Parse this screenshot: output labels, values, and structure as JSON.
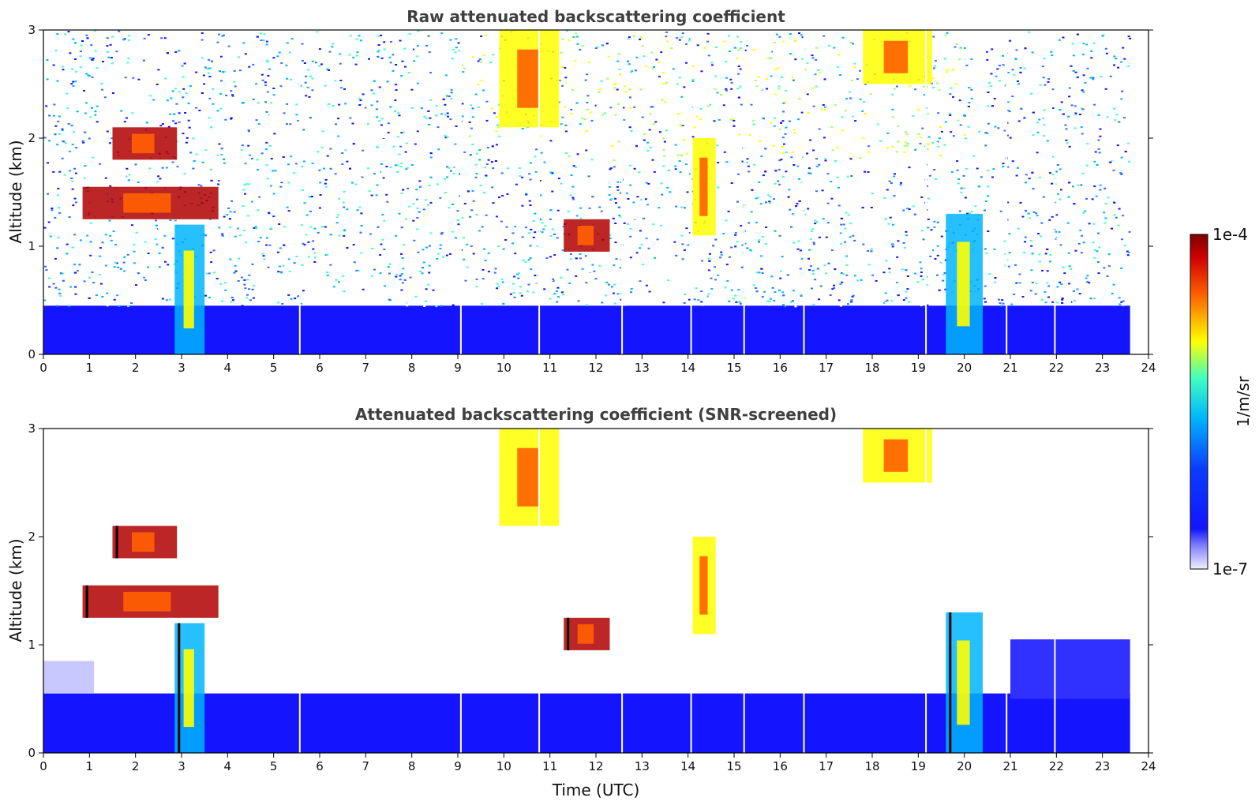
{
  "chart_data": [
    {
      "type": "heatmap",
      "title": "Raw attenuated backscattering coefficient",
      "xlabel": "",
      "ylabel": "Altitude (km)",
      "xlim": [
        0,
        24
      ],
      "ylim": [
        0,
        3
      ],
      "xticks": [
        "0",
        "1",
        "2",
        "3",
        "4",
        "5",
        "6",
        "7",
        "8",
        "9",
        "10",
        "11",
        "12",
        "13",
        "14",
        "15",
        "16",
        "17",
        "18",
        "19",
        "20",
        "21",
        "22",
        "23",
        "24"
      ],
      "yticks": [
        "0",
        "1",
        "2",
        "3"
      ],
      "data_end_hour": 23.6,
      "background_noise": "speckled",
      "features": [
        {
          "t0": 0.85,
          "t1": 3.8,
          "alt": 1.4,
          "kind": "aerosol layer"
        },
        {
          "t0": 1.5,
          "t1": 2.9,
          "alt": 1.95,
          "kind": "aerosol layer"
        },
        {
          "t0": 2.85,
          "t1": 3.5,
          "alt": 0.0,
          "kind": "precipitation fall streak"
        },
        {
          "t0": 9.9,
          "t1": 11.2,
          "alt": 2.5,
          "kind": "cloud"
        },
        {
          "t0": 11.3,
          "t1": 12.3,
          "alt": 1.1,
          "kind": "aerosol layer"
        },
        {
          "t0": 14.1,
          "t1": 14.6,
          "alt": 1.5,
          "kind": "cloud"
        },
        {
          "t0": 19.6,
          "t1": 20.4,
          "alt": 0.1,
          "kind": "precipitation fall streak"
        },
        {
          "t0": 17.8,
          "t1": 19.3,
          "alt": 2.9,
          "kind": "cloud"
        }
      ]
    },
    {
      "type": "heatmap",
      "title": "Attenuated backscattering coefficient (SNR-screened)",
      "xlabel": "Time (UTC)",
      "ylabel": "Altitude (km)",
      "xlim": [
        0,
        24
      ],
      "ylim": [
        0,
        3
      ],
      "xticks": [
        "0",
        "1",
        "2",
        "3",
        "4",
        "5",
        "6",
        "7",
        "8",
        "9",
        "10",
        "11",
        "12",
        "13",
        "14",
        "15",
        "16",
        "17",
        "18",
        "19",
        "20",
        "21",
        "22",
        "23",
        "24"
      ],
      "yticks": [
        "0",
        "1",
        "2",
        "3"
      ],
      "data_end_hour": 23.6,
      "background_noise": "screened",
      "features": [
        {
          "t0": 0.85,
          "t1": 3.8,
          "alt": 1.4,
          "kind": "aerosol layer"
        },
        {
          "t0": 1.5,
          "t1": 2.9,
          "alt": 1.95,
          "kind": "aerosol layer"
        },
        {
          "t0": 2.85,
          "t1": 3.5,
          "alt": 0.0,
          "kind": "precipitation fall streak"
        },
        {
          "t0": 9.9,
          "t1": 11.2,
          "alt": 2.5,
          "kind": "cloud"
        },
        {
          "t0": 11.3,
          "t1": 12.3,
          "alt": 1.1,
          "kind": "aerosol layer"
        },
        {
          "t0": 14.1,
          "t1": 14.6,
          "alt": 1.5,
          "kind": "cloud"
        },
        {
          "t0": 19.6,
          "t1": 20.4,
          "alt": 0.1,
          "kind": "precipitation fall streak"
        },
        {
          "t0": 17.8,
          "t1": 19.3,
          "alt": 2.9,
          "kind": "cloud"
        }
      ]
    }
  ],
  "colorbar": {
    "label": "1/m/sr",
    "max_label": "1e-4",
    "min_label": "1e-7",
    "scale": "log",
    "range": [
      1e-07,
      0.0001
    ],
    "colormap": [
      "#f0f0ff",
      "#1414ff",
      "#00b4ff",
      "#40ffc0",
      "#ffff00",
      "#ff6000",
      "#b00000",
      "#7f0000"
    ]
  }
}
